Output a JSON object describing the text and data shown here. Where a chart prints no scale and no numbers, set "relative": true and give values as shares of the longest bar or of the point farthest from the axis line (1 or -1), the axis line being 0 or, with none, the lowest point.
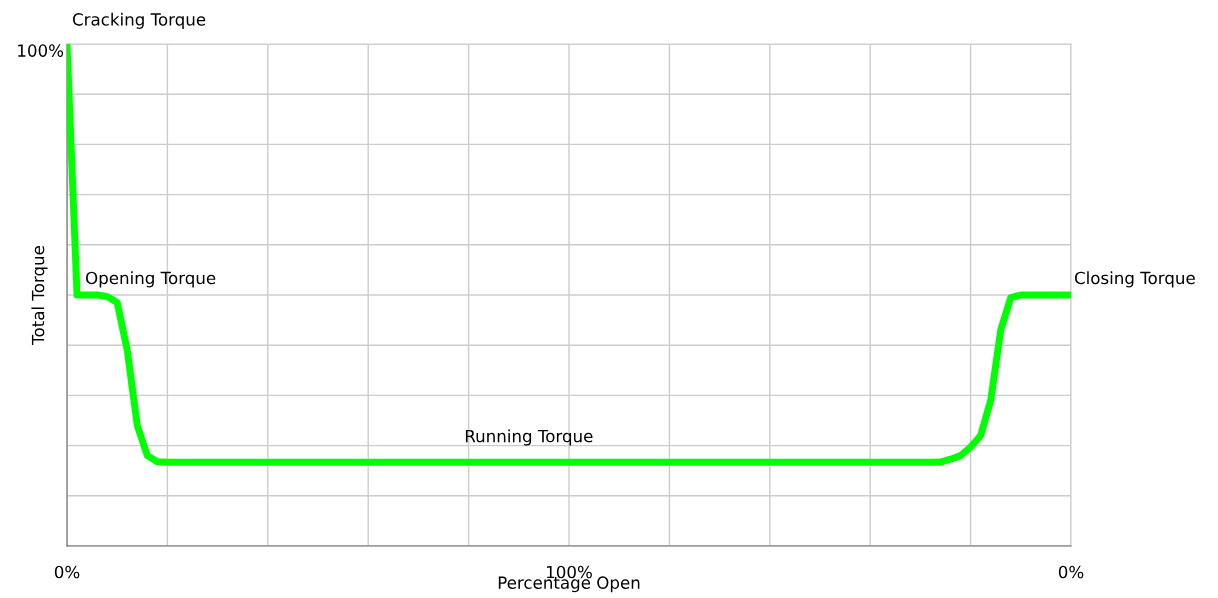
{
  "chart_data": {
    "type": "line",
    "relative": true,
    "xlabel": "Percentage Open",
    "ylabel": "Total Torque",
    "categories": [
      "0%",
      null,
      null,
      null,
      null,
      null,
      null,
      null,
      null,
      null,
      null,
      null,
      null,
      null,
      null,
      null,
      null,
      null,
      null,
      null,
      null,
      null,
      null,
      null,
      null,
      null,
      null,
      null,
      null,
      null,
      null,
      null,
      null,
      null,
      null,
      null,
      null,
      null,
      null,
      null,
      null,
      null,
      null,
      null,
      null,
      null,
      null,
      null,
      null,
      null,
      "100%",
      null,
      null,
      null,
      null,
      null,
      null,
      null,
      null,
      null,
      null,
      null,
      null,
      null,
      null,
      null,
      null,
      null,
      null,
      null,
      null,
      null,
      null,
      null,
      null,
      null,
      null,
      null,
      null,
      null,
      null,
      null,
      null,
      null,
      null,
      null,
      null,
      null,
      null,
      null,
      null,
      null,
      null,
      null,
      null,
      null,
      null,
      null,
      null,
      null,
      "0%"
    ],
    "grid": true,
    "marker": "none",
    "line_style": "solid",
    "series": [
      {
        "color": "#00ff00",
        "values": [
          1.0,
          0.5,
          0.5,
          0.5,
          0.497,
          0.485,
          0.39,
          0.24,
          0.18,
          0.168,
          0.167,
          0.167,
          0.167,
          0.167,
          0.167,
          0.167,
          0.167,
          0.167,
          0.167,
          0.167,
          0.167,
          0.167,
          0.167,
          0.167,
          0.167,
          0.167,
          0.167,
          0.167,
          0.167,
          0.167,
          0.167,
          0.167,
          0.167,
          0.167,
          0.167,
          0.167,
          0.167,
          0.167,
          0.167,
          0.167,
          0.167,
          0.167,
          0.167,
          0.167,
          0.167,
          0.167,
          0.167,
          0.167,
          0.167,
          0.167,
          0.167,
          0.167,
          0.167,
          0.167,
          0.167,
          0.167,
          0.167,
          0.167,
          0.167,
          0.167,
          0.167,
          0.167,
          0.167,
          0.167,
          0.167,
          0.167,
          0.167,
          0.167,
          0.167,
          0.167,
          0.167,
          0.167,
          0.167,
          0.167,
          0.167,
          0.167,
          0.167,
          0.167,
          0.167,
          0.167,
          0.167,
          0.167,
          0.167,
          0.167,
          0.167,
          0.167,
          0.167,
          0.167,
          0.173,
          0.18,
          0.197,
          0.22,
          0.29,
          0.43,
          0.495,
          0.5,
          0.5,
          0.5,
          0.5,
          0.5,
          0.5
        ]
      }
    ],
    "annotations": [
      "100%",
      "Cracking Torque",
      "Opening Torque",
      "Running Torque",
      "Closing Torque"
    ]
  }
}
